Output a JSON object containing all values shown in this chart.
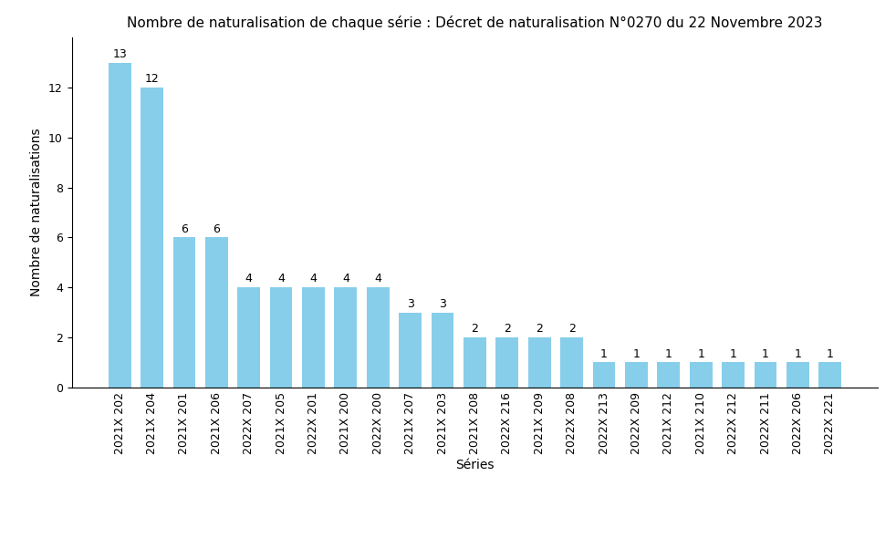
{
  "title": "Nombre de naturalisation de chaque série : Décret de naturalisation N°0270 du 22 Novembre 2023",
  "xlabel": "Séries",
  "ylabel": "Nombre de naturalisations",
  "categories": [
    "2021X 202",
    "2021X 204",
    "2021X 201",
    "2021X 206",
    "2022X 207",
    "2021X 205",
    "2022X 201",
    "2021X 200",
    "2022X 200",
    "2021X 207",
    "2021X 203",
    "2021X 208",
    "2022X 216",
    "2021X 209",
    "2022X 208",
    "2022X 213",
    "2022X 209",
    "2021X 212",
    "2021X 210",
    "2022X 212",
    "2022X 211",
    "2022X 206",
    "2022X 221"
  ],
  "values": [
    13,
    12,
    6,
    6,
    4,
    4,
    4,
    4,
    4,
    3,
    3,
    2,
    2,
    2,
    2,
    1,
    1,
    1,
    1,
    1,
    1,
    1,
    1
  ],
  "bar_color": "#87CEEB",
  "bar_edgecolor": "none",
  "ylim": [
    0,
    14
  ],
  "yticks": [
    0,
    2,
    4,
    6,
    8,
    10,
    12
  ],
  "title_fontsize": 11,
  "label_fontsize": 10,
  "tick_fontsize": 9,
  "annotation_fontsize": 9,
  "background_color": "#ffffff"
}
